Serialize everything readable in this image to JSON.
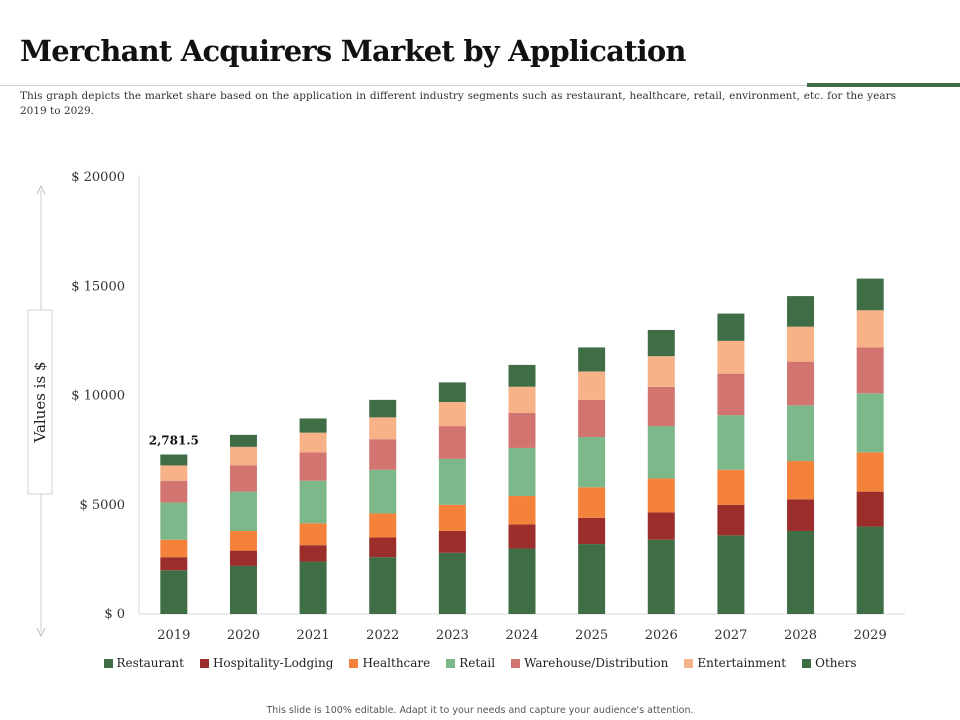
{
  "header": {
    "title": "Merchant Acquirers Market by Application",
    "subtitle": "This graph depicts the market share based on the application in different industry segments such as restaurant, healthcare, retail, environment, etc. for the years 2019 to 2029.",
    "accent_color": "#3f6e46"
  },
  "footer": {
    "text": "This slide is 100% editable. Adapt it to your needs and capture your audience's attention."
  },
  "chart_data": {
    "type": "bar",
    "stacked": true,
    "title": "Merchant Acquirers Market by Application",
    "ylabel": "Values is $",
    "xlabel": "",
    "ylim": [
      0,
      20000
    ],
    "yticks": [
      0,
      5000,
      10000,
      15000,
      20000
    ],
    "ytick_labels": [
      "$ 0",
      "$ 5000",
      "$ 10000",
      "$ 15000",
      "$ 20000"
    ],
    "grid": false,
    "legend_position": "bottom",
    "categories": [
      "2019",
      "2020",
      "2021",
      "2022",
      "2023",
      "2024",
      "2025",
      "2026",
      "2027",
      "2028",
      "2029"
    ],
    "series": [
      {
        "name": "Restaurant",
        "color": "#3f6e46",
        "values": [
          2000,
          2200,
          2400,
          2600,
          2800,
          3000,
          3200,
          3400,
          3600,
          3800,
          4000
        ]
      },
      {
        "name": "Hospitality-Lodging",
        "color": "#9b2d2b",
        "values": [
          600,
          700,
          750,
          900,
          1000,
          1100,
          1200,
          1250,
          1400,
          1450,
          1600
        ]
      },
      {
        "name": "Healthcare",
        "color": "#f5823a",
        "values": [
          800,
          900,
          1000,
          1100,
          1200,
          1300,
          1400,
          1550,
          1600,
          1750,
          1800
        ]
      },
      {
        "name": "Retail",
        "color": "#7db88a",
        "values": [
          1700,
          1800,
          1950,
          2000,
          2100,
          2200,
          2300,
          2400,
          2500,
          2550,
          2700
        ]
      },
      {
        "name": "Warehouse/Distribution",
        "color": "#d27470",
        "values": [
          1000,
          1200,
          1300,
          1400,
          1500,
          1600,
          1700,
          1800,
          1900,
          2000,
          2100
        ]
      },
      {
        "name": "Entertainment",
        "color": "#f7b287",
        "values": [
          700,
          850,
          900,
          1000,
          1100,
          1200,
          1300,
          1400,
          1500,
          1600,
          1700
        ]
      },
      {
        "name": "Others",
        "color": "#3f6e46",
        "values": [
          500,
          550,
          650,
          800,
          900,
          1000,
          1100,
          1200,
          1250,
          1400,
          1450
        ]
      }
    ],
    "annotations": [
      {
        "category": "2019",
        "text": "2,781.5"
      }
    ]
  }
}
